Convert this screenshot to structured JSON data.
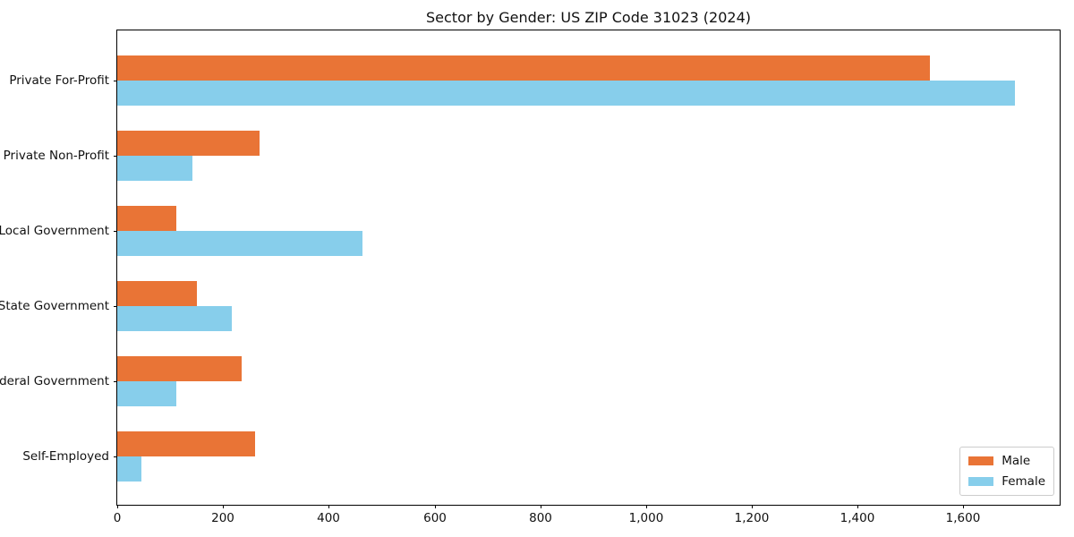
{
  "title": "Sector by Gender: US ZIP Code 31023 (2024)",
  "chart_data": {
    "type": "bar",
    "orientation": "horizontal",
    "title": "Sector by Gender: US ZIP Code 31023 (2024)",
    "xlabel": "",
    "ylabel": "",
    "categories": [
      "Private For-Profit",
      "Private Non-Profit",
      "Local Government",
      "State Government",
      "Federal Government",
      "Self-Employed"
    ],
    "series": [
      {
        "name": "Male",
        "color": "#e97436",
        "values": [
          1537,
          269,
          112,
          151,
          236,
          261
        ]
      },
      {
        "name": "Female",
        "color": "#87ceeb",
        "values": [
          1698,
          142,
          464,
          216,
          112,
          46
        ]
      }
    ],
    "xlim": [
      0,
      1782
    ],
    "x_ticks": [
      0,
      200,
      400,
      600,
      800,
      1000,
      1200,
      1400,
      1600
    ],
    "x_tick_labels": [
      "0",
      "200",
      "400",
      "600",
      "800",
      "1,000",
      "1,200",
      "1,400",
      "1,600"
    ],
    "grid": false,
    "legend_position": "lower right",
    "spine_color": "#000000",
    "background_color": "#ffffff"
  }
}
